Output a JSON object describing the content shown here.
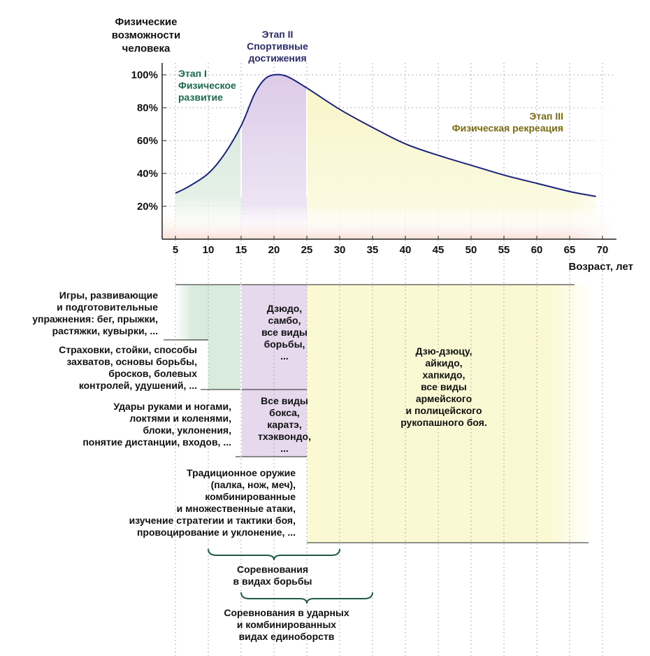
{
  "chart_data": {
    "type": "area",
    "ylabel": "Физические\nвозможности\nчеловека",
    "xlabel": "Возраст, лет",
    "x_ticks": [
      5,
      10,
      15,
      20,
      25,
      30,
      35,
      40,
      45,
      50,
      55,
      60,
      65,
      70
    ],
    "y_ticks": [
      "20%",
      "40%",
      "60%",
      "80%",
      "100%"
    ],
    "xlim": [
      3,
      73
    ],
    "ylim": [
      0,
      100
    ],
    "grid": true,
    "curve": [
      {
        "x": 5,
        "y": 28
      },
      {
        "x": 7,
        "y": 32
      },
      {
        "x": 10,
        "y": 40
      },
      {
        "x": 12.5,
        "y": 52
      },
      {
        "x": 15,
        "y": 69
      },
      {
        "x": 17,
        "y": 88
      },
      {
        "x": 18.5,
        "y": 97
      },
      {
        "x": 20,
        "y": 100
      },
      {
        "x": 22,
        "y": 99
      },
      {
        "x": 25,
        "y": 92
      },
      {
        "x": 30,
        "y": 79
      },
      {
        "x": 35,
        "y": 68
      },
      {
        "x": 40,
        "y": 58
      },
      {
        "x": 45,
        "y": 51
      },
      {
        "x": 50,
        "y": 45
      },
      {
        "x": 55,
        "y": 39
      },
      {
        "x": 60,
        "y": 34
      },
      {
        "x": 65,
        "y": 29
      },
      {
        "x": 69,
        "y": 26
      }
    ],
    "stages": [
      {
        "name": "Этап I\nФизическое\nразвитие",
        "from": 5,
        "to": 15,
        "color": "#d7eadb",
        "text_color": "#1a6b4a"
      },
      {
        "name": "Этап II\nСпортивные\nдостижения",
        "from": 15,
        "to": 25,
        "color": "#e3d5ec",
        "text_color": "#2a2a6e"
      },
      {
        "name": "Этап III\nФизическая рекреация",
        "from": 25,
        "to": 70,
        "color": "#f9f7cf",
        "text_color": "#7a6a12"
      }
    ]
  },
  "activities": {
    "left": [
      "Игры, развивающие\nи подготовительные\nупражнения: бег, прыжки,\nрастяжки, кувырки, ...",
      "Страховки, стойки, способы\nзахватов, основы борьбы,\nбросков, болевых\nконтролей, удушений, ...",
      "Удары руками и ногами,\nлоктями и коленями,\nблоки, уклонения,\nпонятие дистанции, входов, ...",
      "Традиционное оружие\n(палка, нож, меч),\nкомбинированные\nи множественные атаки,\nизучение стратегии и тактики боя,\nпровоцирование и уклонение, ..."
    ],
    "stage2_top": "Дзюдо,\nсамбо,\nвсе виды\nборьбы,\n...",
    "stage2_bottom": "Все виды\nбокса,\nкаратэ,\nтхэквондо,\n...",
    "stage3": "Дзю-дзюцу,\nайкидо,\nхапкидо,\nвсе виды\nармейского\nи полицейского\nрукопашного боя."
  },
  "competitions": [
    "Соревнования\nв видах борьбы",
    "Соревнования в ударных\nи комбинированных\nвидах единоборств"
  ],
  "colors": {
    "curve": "#1a237e",
    "stage1": "#d7eadb",
    "stage2": "#e3d5ec",
    "stage3": "#f9f7cf",
    "brace": "#1f5b44",
    "bottom_band": "#f9e3dc"
  }
}
